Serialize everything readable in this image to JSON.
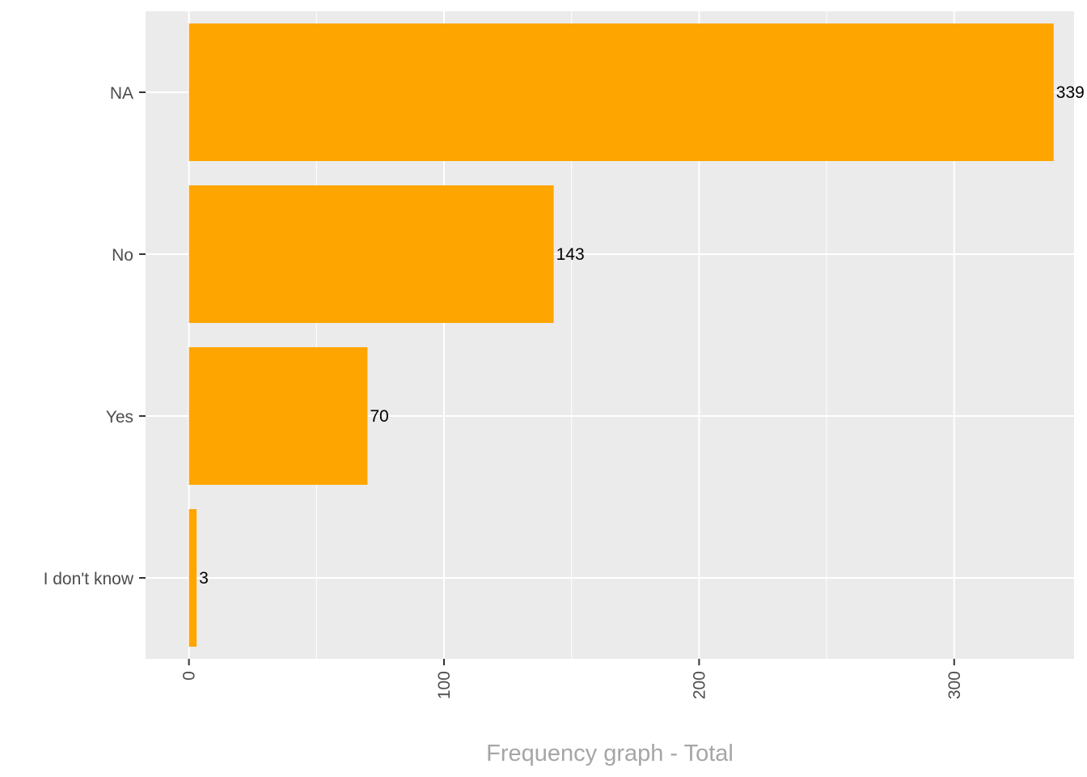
{
  "chart_data": {
    "type": "bar",
    "orientation": "horizontal",
    "categories": [
      "NA",
      "No",
      "Yes",
      "I don't know"
    ],
    "values": [
      339,
      143,
      70,
      3
    ],
    "value_labels": [
      "339",
      "143",
      "70",
      "3"
    ],
    "xlabel": "Frequency graph - Total",
    "ylabel": "",
    "xlim": [
      -17,
      347
    ],
    "x_ticks": [
      0,
      100,
      200,
      300
    ],
    "x_tick_labels": [
      "0",
      "100",
      "200",
      "300"
    ],
    "x_tick_label_rotation": "vertical",
    "grid": true,
    "legend": "none",
    "colors": {
      "bar": "#FFA500",
      "panel_background": "#EBEBEB",
      "grid": "#FFFFFF",
      "axis_text": "#4D4D4D",
      "axis_title": "#A6A6A6",
      "bar_label": "#000000"
    }
  }
}
